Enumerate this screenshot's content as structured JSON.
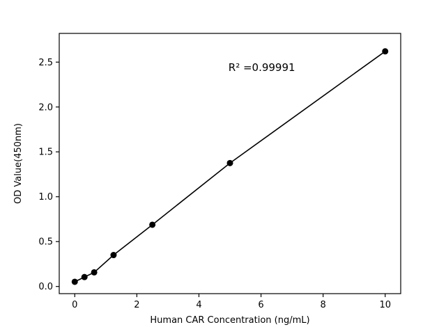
{
  "chart_data": {
    "type": "scatter",
    "title": "",
    "xlabel": "Human CAR Concentration (ng/mL)",
    "ylabel": "OD Value(450nm)",
    "annotation": "R² =0.99991",
    "annotation_x": 4.95,
    "annotation_y": 2.4,
    "x": [
      0,
      0.3125,
      0.625,
      1.25,
      2.5,
      5,
      10
    ],
    "y": [
      0.052,
      0.105,
      0.157,
      0.35,
      0.688,
      1.375,
      2.62
    ],
    "xlim": [
      -0.5,
      10.5
    ],
    "ylim": [
      -0.08,
      2.82
    ],
    "xticks": [
      0,
      2,
      4,
      6,
      8,
      10
    ],
    "xtick_labels": [
      "0",
      "2",
      "4",
      "6",
      "8",
      "10"
    ],
    "yticks": [
      0.0,
      0.5,
      1.0,
      1.5,
      2.0,
      2.5
    ],
    "ytick_labels": [
      "0.0",
      "0.5",
      "1.0",
      "1.5",
      "2.0",
      "2.5"
    ],
    "line_color": "#000000",
    "marker_color": "#000000",
    "frame_color": "#000000",
    "background": "#ffffff",
    "grid": false,
    "legend": null,
    "marker_radius": 4.5
  }
}
